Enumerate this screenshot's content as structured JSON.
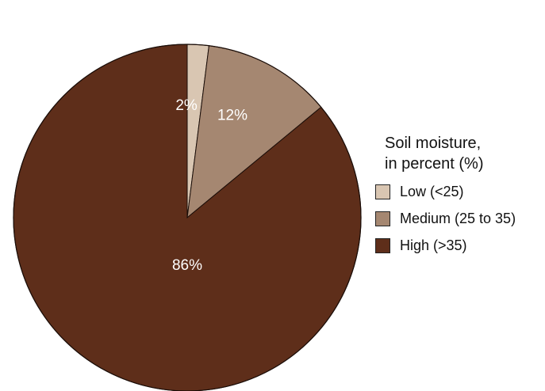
{
  "chart_data": {
    "type": "pie",
    "title": "",
    "categories": [
      "Low (<25)",
      "Medium (25 to 35)",
      "High (>35)"
    ],
    "values": [
      2,
      12,
      86
    ],
    "labels": [
      "2%",
      "12%",
      "86%"
    ],
    "colors": [
      "#d9c6b2",
      "#a58771",
      "#5e2e1a"
    ],
    "start_angle_deg": 0,
    "direction": "clockwise",
    "legend": {
      "title_line1": "Soil moisture,",
      "title_line2": "in percent (%)",
      "placement": "right"
    }
  }
}
